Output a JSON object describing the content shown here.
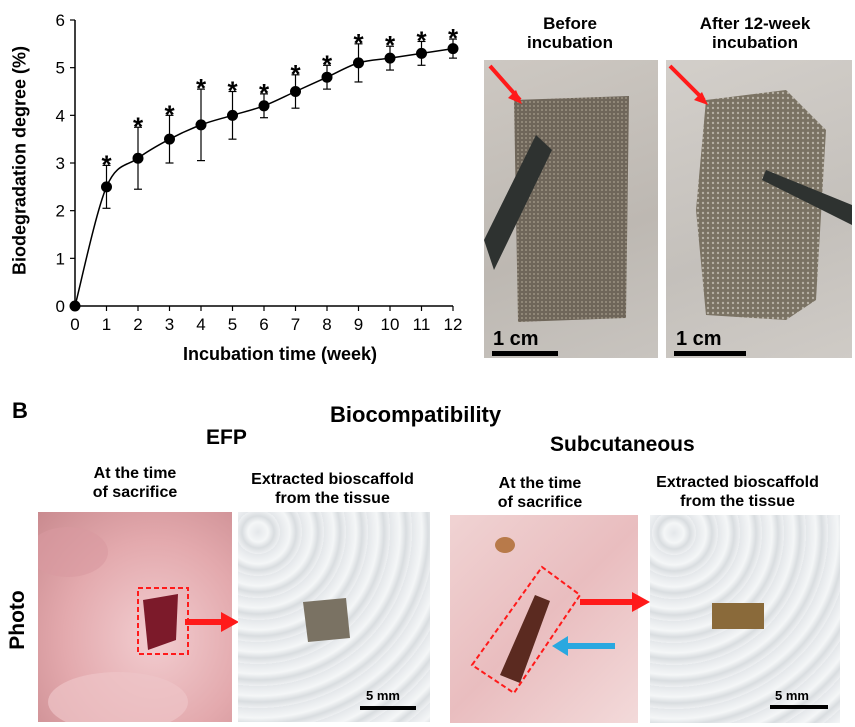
{
  "chart_data": {
    "type": "line",
    "xlabel": "Incubation time (week)",
    "ylabel": "Biodegradation degree (%)",
    "x": [
      0,
      1,
      2,
      3,
      4,
      5,
      6,
      7,
      8,
      9,
      10,
      11,
      12
    ],
    "y": [
      0,
      2.5,
      3.1,
      3.5,
      3.8,
      4.0,
      4.2,
      4.5,
      4.8,
      5.1,
      5.2,
      5.3,
      5.4
    ],
    "error": [
      0,
      0.45,
      0.65,
      0.5,
      0.75,
      0.5,
      0.25,
      0.35,
      0.25,
      0.4,
      0.25,
      0.25,
      0.2
    ],
    "significance": [
      "",
      "*",
      "*",
      "*",
      "*",
      "*",
      "*",
      "*",
      "*",
      "*",
      "*",
      "*",
      "*"
    ],
    "xlim": [
      0,
      12
    ],
    "ylim": [
      0,
      6
    ],
    "xticks": [
      0,
      1,
      2,
      3,
      4,
      5,
      6,
      7,
      8,
      9,
      10,
      11,
      12
    ],
    "yticks": [
      0,
      1,
      2,
      3,
      4,
      5,
      6
    ],
    "grid": false
  },
  "panel_a": {
    "before_label": "Before\nincubation",
    "after_label": "After 12-week\nincubation",
    "scale_left": "1 cm",
    "scale_right": "1 cm"
  },
  "panel_b": {
    "letter": "B",
    "title": "Biocompatibility",
    "efp_title": "EFP",
    "subq_title": "Subcutaneous",
    "row_label": "Photo",
    "efp_sacrifice": "At the time\nof sacrifice",
    "efp_extracted": "Extracted bioscaffold\nfrom the tissue",
    "subq_sacrifice": "At the time\nof sacrifice",
    "subq_extracted": "Extracted bioscaffold\nfrom the tissue",
    "scale_efp": "5 mm",
    "scale_subq": "5 mm"
  },
  "colors": {
    "arrow_red": "#ff1a1a",
    "arrow_blue": "#29a8e0",
    "scaffold_gray": "#7a7263",
    "tissue_pink": "#e9b5b8"
  }
}
